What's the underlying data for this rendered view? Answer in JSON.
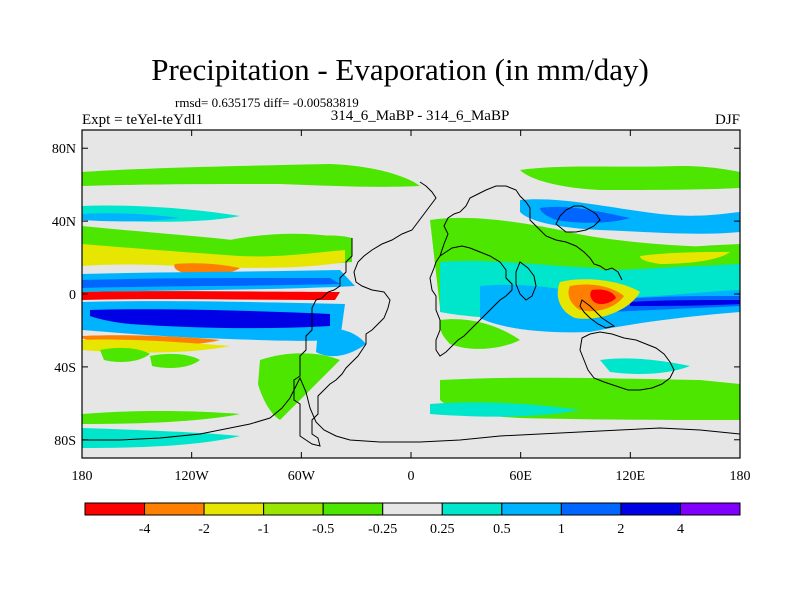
{
  "title": "Precipitation - Evaporation (in mm/day)",
  "stats_line": "rmsd= 0.635175  diff= -0.00583819",
  "left_label": "Expt = teYel-teYdl1",
  "center_label": "314_6_MaBP - 314_6_MaBP",
  "right_label": "DJF",
  "map": {
    "background_color": "#e6e6e6",
    "lon_range": [
      -180,
      180
    ],
    "lat_range": [
      -90,
      90
    ],
    "x_ticks": [
      {
        "lon": -180,
        "label": "180"
      },
      {
        "lon": -120,
        "label": "120W"
      },
      {
        "lon": -60,
        "label": "60W"
      },
      {
        "lon": 0,
        "label": "0"
      },
      {
        "lon": 60,
        "label": "60E"
      },
      {
        "lon": 120,
        "label": "120E"
      },
      {
        "lon": 180,
        "label": "180"
      }
    ],
    "y_ticks": [
      {
        "lat": 80,
        "label": "80N"
      },
      {
        "lat": 40,
        "label": "40N"
      },
      {
        "lat": 0,
        "label": "0"
      },
      {
        "lat": -40,
        "label": "40S"
      },
      {
        "lat": -80,
        "label": "80S"
      }
    ]
  },
  "colorbar": {
    "colors": [
      "#ff0000",
      "#ff7f00",
      "#e6e600",
      "#99e600",
      "#4ce600",
      "#e6e6e6",
      "#00e6cc",
      "#00b3ff",
      "#0066ff",
      "#0000e6",
      "#7f00ff"
    ],
    "labels": [
      "-4",
      "-2",
      "-1",
      "-0.5",
      "-0.25",
      "0.25",
      "0.5",
      "1",
      "2",
      "4"
    ]
  },
  "colors": {
    "coast": "#000000",
    "levels": {
      "neg4": "#ff0000",
      "neg2": "#ff7f00",
      "neg1": "#e6e600",
      "neg05": "#99e600",
      "neg025": "#4ce600",
      "pos05": "#00e6cc",
      "pos1": "#00b3ff",
      "pos2": "#0066ff",
      "pos4": "#0000e6"
    }
  }
}
